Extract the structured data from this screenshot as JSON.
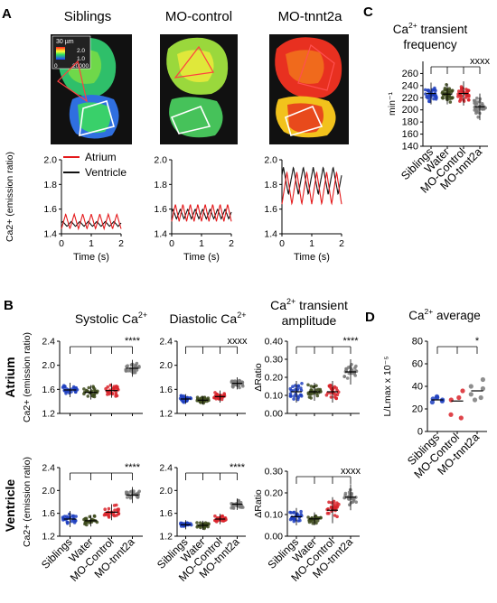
{
  "panel_letters": {
    "A": "A",
    "B": "B",
    "C": "C",
    "D": "D"
  },
  "panel_a": {
    "image_titles": [
      "Siblings",
      "MO-control",
      "MO-tnnt2a"
    ],
    "scale_label": "30 µm",
    "colorbar_ticks": [
      "2.0",
      "1.0"
    ],
    "colorbar_range": [
      "0",
      "20000"
    ],
    "legend": [
      "Atrium",
      "Ventricle"
    ],
    "ylabel": "Ca2+ (emission ratio)",
    "xlabel": "Time (s)"
  },
  "panel_b": {
    "col_titles": [
      [
        "Systolic Ca",
        "2+"
      ],
      [
        "Diastolic Ca",
        "2+"
      ],
      [
        "Ca",
        "2+",
        " transient"
      ]
    ],
    "col_title_line2": "amplitude",
    "row_labels": [
      "Atrium",
      "Ventricle"
    ],
    "ylabel_ca": "Ca2+ (emission ratio)",
    "ylabel_ratio": "ΔRatio",
    "groups": [
      "Siblings",
      "Water",
      "MO-Control",
      "MO-tnnt2a"
    ]
  },
  "panel_c": {
    "title_1": "Ca",
    "title_sup": "2+",
    "title_2": " transient",
    "title_3": "frequency",
    "ylabel": "min⁻¹",
    "groups": [
      "Siblings",
      "Water",
      "MO-Control",
      "MO-tnnt2a"
    ]
  },
  "panel_d": {
    "title_1": "Ca",
    "title_sup": "2+",
    "title_2": " average",
    "ylabel": "L/Lmax x 10⁻⁵",
    "groups": [
      "Siblings",
      "MO-Control",
      "MO-tnnt2a"
    ]
  },
  "colors": {
    "siblings": "#1f3fbf",
    "water": "#3d4a1c",
    "mo_control": "#d9232a",
    "mo_tnnt2a": "#7a7a7a",
    "atrium": "#e41a1c",
    "ventricle": "#111111"
  },
  "chart_data": [
    {
      "type": "line",
      "panel": "A-traces",
      "charts": [
        {
          "name": "Siblings",
          "xlim": [
            0,
            2
          ],
          "ylim": [
            1.4,
            2.0
          ],
          "xticks": [
            "0",
            "1",
            "2"
          ],
          "yticks": [
            "1.4",
            "1.6",
            "1.8",
            "2.0"
          ],
          "atrium": {
            "min": 1.44,
            "max": 1.56,
            "cycles": 7
          },
          "ventricle": {
            "min": 1.46,
            "max": 1.5,
            "cycles": 7
          }
        },
        {
          "name": "MO-control",
          "xlim": [
            0,
            2
          ],
          "ylim": [
            1.4,
            2.0
          ],
          "xticks": [
            "0",
            "1",
            "2"
          ],
          "yticks": [
            "1.4",
            "1.6",
            "1.8",
            "2.0"
          ],
          "atrium": {
            "min": 1.5,
            "max": 1.64,
            "cycles": 8
          },
          "ventricle": {
            "min": 1.52,
            "max": 1.6,
            "cycles": 8
          }
        },
        {
          "name": "MO-tnnt2a",
          "xlim": [
            0,
            2
          ],
          "ylim": [
            1.4,
            2.0
          ],
          "xticks": [
            "0",
            "1",
            "2"
          ],
          "yticks": [
            "1.4",
            "1.6",
            "1.8",
            "2.0"
          ],
          "atrium": {
            "min": 1.64,
            "max": 1.9,
            "cycles": 6
          },
          "ventricle": {
            "min": 1.72,
            "max": 1.94,
            "cycles": 6
          }
        }
      ]
    },
    {
      "type": "scatter",
      "panel": "B-atrium-systolic",
      "ylim": [
        1.2,
        2.4
      ],
      "yticks": [
        "1.2",
        "1.6",
        "2.0",
        "2.4"
      ],
      "means": [
        1.59,
        1.55,
        1.58,
        1.95
      ],
      "spread": [
        0.12,
        0.12,
        0.12,
        0.14
      ],
      "sig": "****"
    },
    {
      "type": "scatter",
      "panel": "B-atrium-diastolic",
      "ylim": [
        1.2,
        2.4
      ],
      "yticks": [
        "1.2",
        "1.6",
        "2.0",
        "2.4"
      ],
      "means": [
        1.44,
        1.42,
        1.48,
        1.7
      ],
      "spread": [
        0.08,
        0.07,
        0.1,
        0.1
      ],
      "sig": "xxxx"
    },
    {
      "type": "scatter",
      "panel": "B-atrium-amplitude",
      "ylim": [
        0,
        0.4
      ],
      "yticks": [
        "0.00",
        "0.10",
        "0.20",
        "0.30",
        "0.40"
      ],
      "means": [
        0.12,
        0.12,
        0.12,
        0.23
      ],
      "spread": [
        0.06,
        0.05,
        0.06,
        0.07
      ],
      "sig": "****"
    },
    {
      "type": "scatter",
      "panel": "B-ventricle-systolic",
      "ylim": [
        1.2,
        2.4
      ],
      "yticks": [
        "1.2",
        "1.6",
        "2.0",
        "2.4"
      ],
      "means": [
        1.5,
        1.47,
        1.62,
        1.92
      ],
      "spread": [
        0.14,
        0.1,
        0.14,
        0.14
      ],
      "sig": "****"
    },
    {
      "type": "scatter",
      "panel": "B-ventricle-diastolic",
      "ylim": [
        1.2,
        2.4
      ],
      "yticks": [
        "1.2",
        "1.6",
        "2.0",
        "2.4"
      ],
      "means": [
        1.4,
        1.39,
        1.5,
        1.76
      ],
      "spread": [
        0.08,
        0.08,
        0.09,
        0.1
      ],
      "sig": "****"
    },
    {
      "type": "scatter",
      "panel": "B-ventricle-amplitude",
      "ylim": [
        0,
        0.3
      ],
      "yticks": [
        "0.00",
        "0.10",
        "0.20",
        "0.30"
      ],
      "means": [
        0.09,
        0.08,
        0.12,
        0.18
      ],
      "spread": [
        0.04,
        0.03,
        0.06,
        0.06
      ],
      "sig": "xxxx"
    },
    {
      "type": "scatter",
      "panel": "C",
      "ylim": [
        140,
        280
      ],
      "yticks": [
        "140",
        "160",
        "180",
        "200",
        "220",
        "240",
        "260"
      ],
      "means": [
        227,
        226,
        227,
        205
      ],
      "spread": [
        18,
        17,
        20,
        22
      ],
      "sig": "xxxx"
    },
    {
      "type": "scatter",
      "panel": "D",
      "ylim": [
        0,
        80
      ],
      "yticks": [
        "0",
        "20",
        "40",
        "60",
        "80"
      ],
      "means": [
        28,
        27,
        36
      ],
      "points": [
        [
          26,
          28,
          29,
          27,
          30,
          31
        ],
        [
          12,
          28,
          36,
          15,
          30
        ],
        [
          28,
          33,
          40,
          46,
          30,
          38
        ]
      ],
      "sig": "*"
    }
  ]
}
